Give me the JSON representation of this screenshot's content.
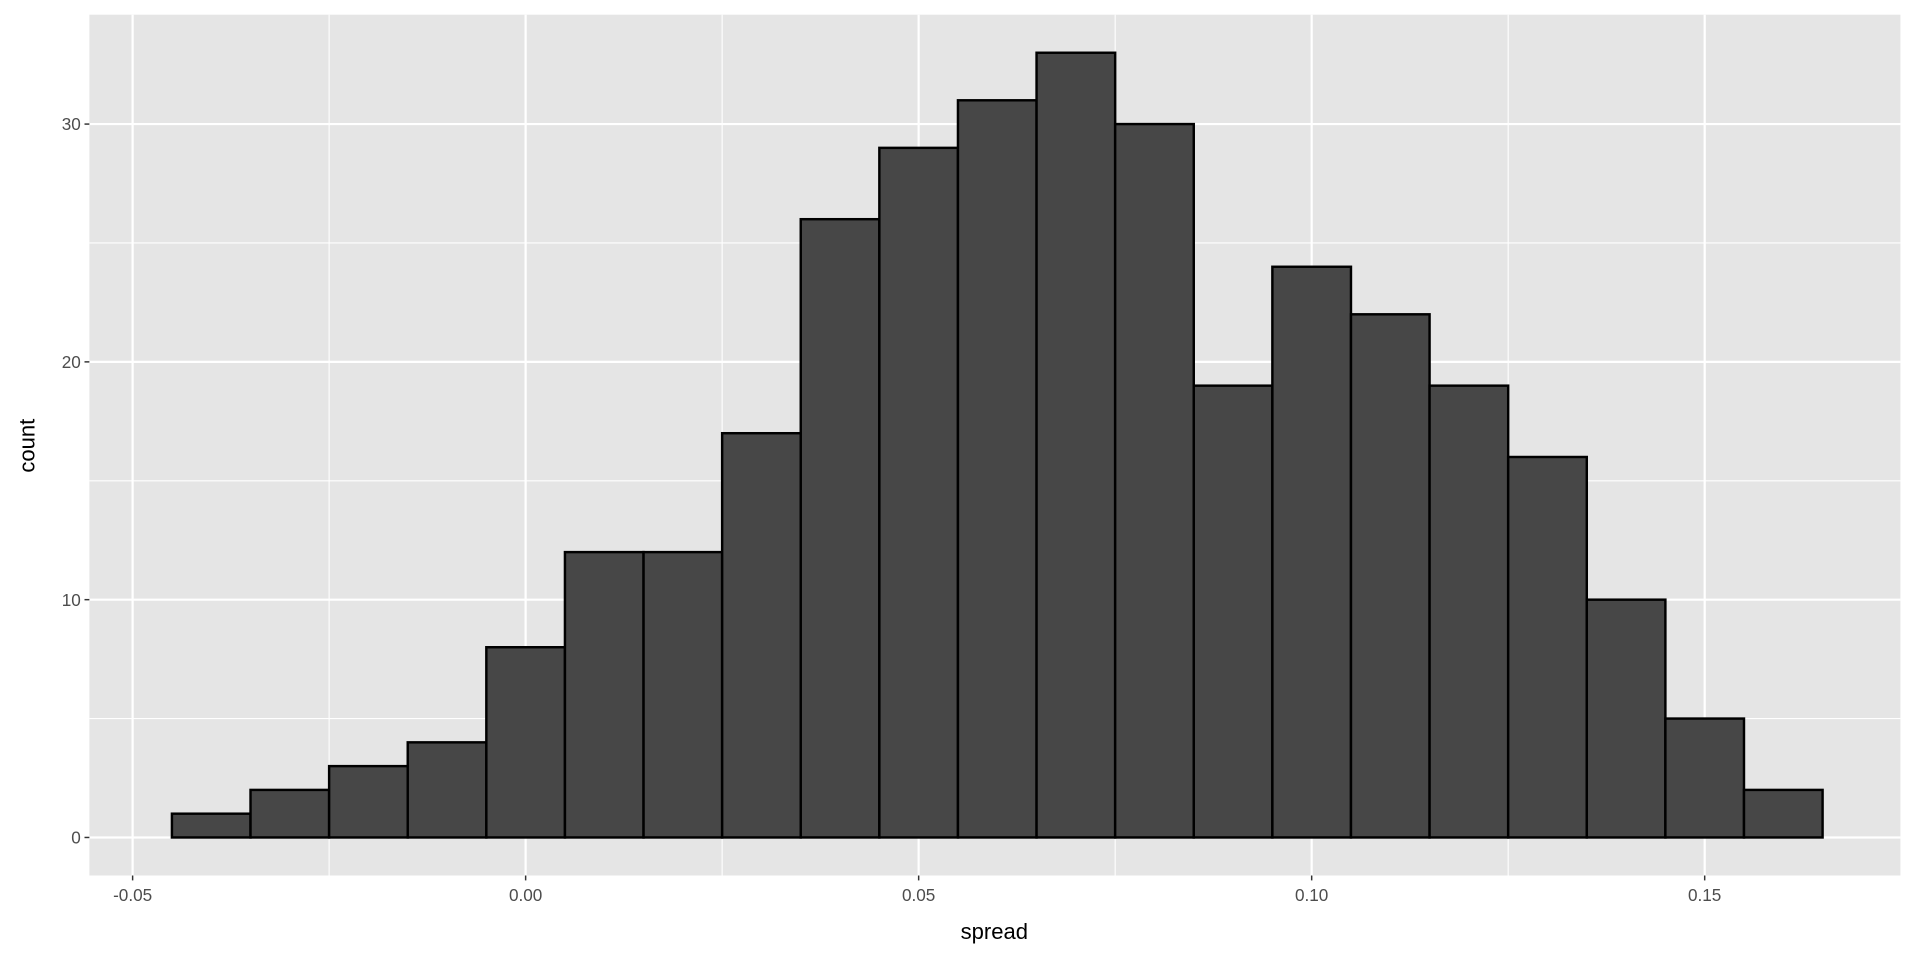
{
  "chart_data": {
    "type": "bar",
    "subtype": "histogram",
    "xlabel": "spread",
    "ylabel": "count",
    "xlim": [
      -0.0555,
      0.1749
    ],
    "ylim": [
      -1.6,
      34.6
    ],
    "bin_width": 0.01,
    "bin_centers": [
      -0.04,
      -0.03,
      -0.02,
      -0.01,
      0.0,
      0.01,
      0.02,
      0.03,
      0.04,
      0.05,
      0.06,
      0.07,
      0.08,
      0.09,
      0.1,
      0.11,
      0.12,
      0.13,
      0.14,
      0.15,
      0.16
    ],
    "values": [
      1,
      2,
      3,
      4,
      8,
      12,
      12,
      17,
      26,
      29,
      31,
      33,
      30,
      19,
      24,
      22,
      19,
      16,
      10,
      5,
      2
    ],
    "x_ticks": [
      -0.05,
      0.0,
      0.05,
      0.1,
      0.15
    ],
    "x_tick_labels": [
      "-0.05",
      "0.00",
      "0.05",
      "0.10",
      "0.15"
    ],
    "y_ticks": [
      0,
      10,
      20,
      30
    ],
    "y_tick_labels": [
      "0",
      "10",
      "20",
      "30"
    ],
    "grid": true,
    "legend": "none",
    "colors": {
      "panel": "#e5e5e5",
      "grid": "#ffffff",
      "bar_fill": "#474747",
      "bar_outline": "#000000"
    }
  }
}
